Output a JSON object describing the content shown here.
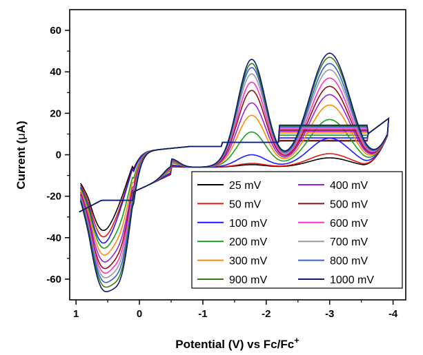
{
  "chart_data": {
    "type": "line",
    "title": "",
    "xlabel_main": "Potential (V) vs Fc/Fc",
    "xlabel_sup": "+",
    "ylabel_main": "Current (",
    "ylabel_mu": "μ",
    "ylabel_tail": "A)",
    "xlim": [
      1.1,
      -4.2
    ],
    "ylim": [
      -70,
      70
    ],
    "x_reversed": true,
    "grid": false,
    "legend_position": "bottom-right",
    "xticks": [
      1,
      0,
      -1,
      -2,
      -3,
      -4
    ],
    "xtick_labels": [
      "1",
      "0",
      "-1",
      "-2",
      "-3",
      "-4"
    ],
    "yticks": [
      60,
      40,
      20,
      0,
      -20,
      -40,
      -60
    ],
    "ytick_labels": [
      "60",
      "40",
      "20",
      "0",
      "-20",
      "-40",
      "-60"
    ],
    "legend_order": [
      0,
      5,
      1,
      6,
      2,
      7,
      3,
      8,
      4,
      9,
      10,
      11
    ],
    "series": [
      {
        "name": "25 mV",
        "color": "#000000",
        "peaks": {
          "fwd1": 1.2,
          "fwd2": 4.5,
          "rev1": -14,
          "rev2": -40,
          "mid": 0.2
        }
      },
      {
        "name": "50 mV",
        "color": "#e8140c",
        "peaks": {
          "fwd1": 1.8,
          "fwd2": 6.5,
          "rev1": -16,
          "rev2": -43,
          "mid": 0.5
        }
      },
      {
        "name": "100 mV",
        "color": "#1a1aff",
        "peaks": {
          "fwd1": 6,
          "fwd2": 14,
          "rev1": -16,
          "rev2": -46,
          "mid": 1.0
        }
      },
      {
        "name": "200 mV",
        "color": "#1c9c1c",
        "peaks": {
          "fwd1": 17,
          "fwd2": 23,
          "rev1": -27,
          "rev2": -48,
          "mid": 2.0
        }
      },
      {
        "name": "300 mV",
        "color": "#ff8c00",
        "peaks": {
          "fwd1": 25,
          "fwd2": 30,
          "rev1": -33,
          "rev2": -51,
          "mid": 2.5
        }
      },
      {
        "name": "400 mV",
        "color": "#9b1fe8",
        "peaks": {
          "fwd1": 31,
          "fwd2": 35,
          "rev1": -39,
          "rev2": -54,
          "mid": 3.0
        }
      },
      {
        "name": "500 mV",
        "color": "#8b1010",
        "peaks": {
          "fwd1": 37,
          "fwd2": 39,
          "rev1": -43,
          "rev2": -57,
          "mid": 3.2
        }
      },
      {
        "name": "600 mV",
        "color": "#ff2dc8",
        "peaks": {
          "fwd1": 41,
          "fwd2": 43,
          "rev1": -47,
          "rev2": -59,
          "mid": 3.4
        }
      },
      {
        "name": "700 mV",
        "color": "#9a9a9a",
        "peaks": {
          "fwd1": 45,
          "fwd2": 47,
          "rev1": -51,
          "rev2": -61,
          "mid": 3.6
        }
      },
      {
        "name": "800 mV",
        "color": "#2f5fe0",
        "peaks": {
          "fwd1": 48,
          "fwd2": 50,
          "rev1": -55,
          "rev2": -63,
          "mid": 3.7
        }
      },
      {
        "name": "900 mV",
        "color": "#3a7a10",
        "peaks": {
          "fwd1": 50,
          "fwd2": 53,
          "rev1": -59,
          "rev2": -65,
          "mid": 3.8
        }
      },
      {
        "name": "1000 mV",
        "color": "#0a1a6e",
        "peaks": {
          "fwd1": 52,
          "fwd2": 55,
          "rev1": -62,
          "rev2": -67,
          "mid": 4.0
        }
      }
    ]
  }
}
